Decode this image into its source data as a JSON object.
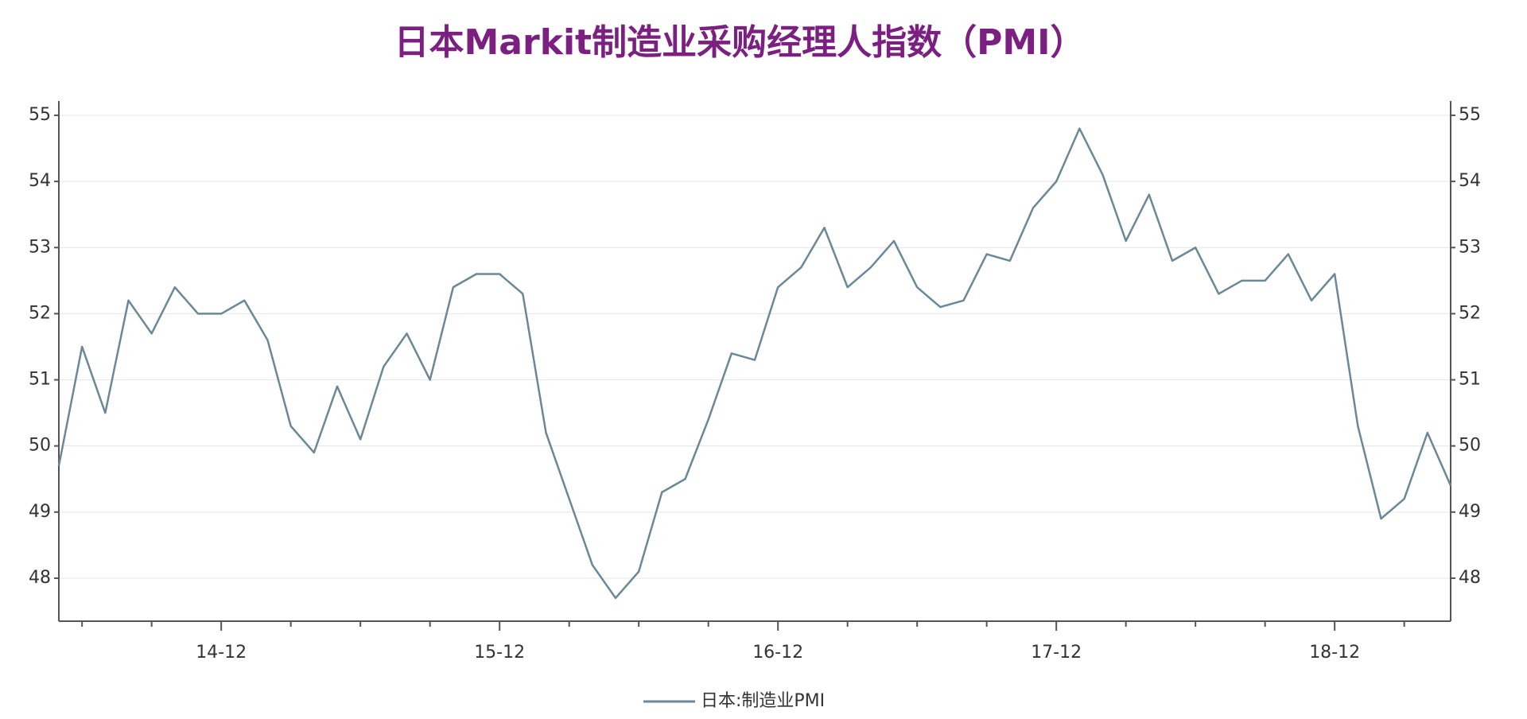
{
  "chart_data": {
    "type": "line",
    "title": "日本Markit制造业采购经理人指数（PMI）",
    "categories": [
      null,
      null,
      null,
      null,
      null,
      null,
      null,
      "14-12",
      null,
      null,
      null,
      null,
      null,
      null,
      null,
      null,
      null,
      null,
      null,
      "15-12",
      null,
      null,
      null,
      null,
      null,
      null,
      null,
      null,
      null,
      null,
      null,
      "16-12",
      null,
      null,
      null,
      null,
      null,
      null,
      null,
      null,
      null,
      null,
      null,
      "17-12",
      null,
      null,
      null,
      null,
      null,
      null,
      null,
      null,
      null,
      null,
      null,
      "18-12",
      null,
      null,
      null,
      null,
      null
    ],
    "series": [
      {
        "name": "日本:制造业PMI",
        "color": "#6b8897",
        "values": [
          49.7,
          51.5,
          50.5,
          52.2,
          51.7,
          52.4,
          52.0,
          52.0,
          52.2,
          51.6,
          50.3,
          49.9,
          50.9,
          50.1,
          51.2,
          51.7,
          51.0,
          52.4,
          52.6,
          52.6,
          52.3,
          50.2,
          49.2,
          48.2,
          47.7,
          48.1,
          49.3,
          49.5,
          50.4,
          51.4,
          51.3,
          52.4,
          52.7,
          53.3,
          52.4,
          52.7,
          53.1,
          52.4,
          52.1,
          52.2,
          52.9,
          52.8,
          53.6,
          54.0,
          54.8,
          54.1,
          53.1,
          53.8,
          52.8,
          53.0,
          52.3,
          52.5,
          52.5,
          52.9,
          52.2,
          52.6,
          50.3,
          48.9,
          49.2,
          50.2,
          49.4
        ]
      }
    ],
    "ylim": [
      47.35,
      55.12
    ],
    "yticks": [
      48,
      49,
      50,
      51,
      52,
      53,
      54,
      55
    ],
    "y2lim": [
      47.35,
      55.12
    ],
    "y2ticks": [
      48,
      49,
      50,
      51,
      52,
      53,
      54,
      55
    ],
    "grid": true,
    "legend": "bottom"
  }
}
